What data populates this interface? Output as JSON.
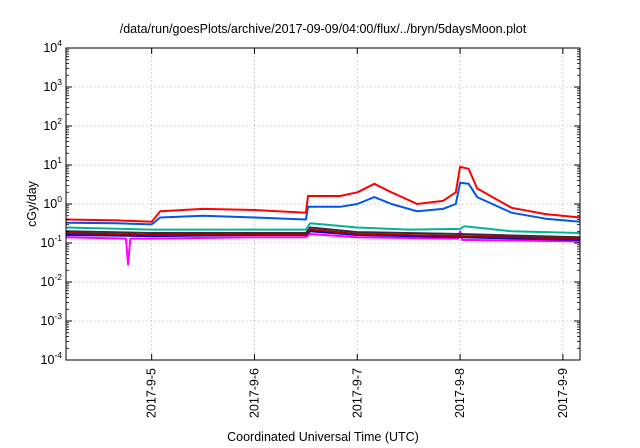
{
  "chart_data": {
    "type": "line",
    "title": "/data/run/goesPlots/archive/2017-09-09/04:00/flux/../bryn/5daysMoon.plot",
    "xlabel": "Coordinated Universal Time (UTC)",
    "ylabel": "cGy/day",
    "y_scale": "log",
    "ylim": [
      0.0001,
      10000
    ],
    "y_ticks": [
      {
        "value": 0.0001,
        "base": "10",
        "exp": "-4"
      },
      {
        "value": 0.001,
        "base": "10",
        "exp": "-3"
      },
      {
        "value": 0.01,
        "base": "10",
        "exp": "-2"
      },
      {
        "value": 0.1,
        "base": "10",
        "exp": "-1"
      },
      {
        "value": 1,
        "base": "10",
        "exp": "0"
      },
      {
        "value": 10,
        "base": "10",
        "exp": "1"
      },
      {
        "value": 100,
        "base": "10",
        "exp": "2"
      },
      {
        "value": 1000,
        "base": "10",
        "exp": "3"
      },
      {
        "value": 10000,
        "base": "10",
        "exp": "4"
      }
    ],
    "xlim": [
      "2017-09-04T04:00",
      "2017-09-09T04:00"
    ],
    "x_ticks": [
      "2017-9-5",
      "2017-9-6",
      "2017-9-7",
      "2017-9-8",
      "2017-9-9"
    ],
    "grid": true,
    "series": [
      {
        "color": "#ff0000",
        "x": [
          "2017-09-04T04:00",
          "2017-09-04T16:00",
          "2017-09-05T00:00",
          "2017-09-05T02:00",
          "2017-09-05T12:00",
          "2017-09-06T00:00",
          "2017-09-06T12:00",
          "2017-09-06T12:30",
          "2017-09-06T20:00",
          "2017-09-07T00:00",
          "2017-09-07T04:00",
          "2017-09-07T08:00",
          "2017-09-07T14:00",
          "2017-09-07T20:00",
          "2017-09-07T23:00",
          "2017-09-08T00:00",
          "2017-09-08T02:00",
          "2017-09-08T04:00",
          "2017-09-08T12:00",
          "2017-09-08T20:00",
          "2017-09-09T04:00"
        ],
        "y": [
          0.4,
          0.38,
          0.35,
          0.65,
          0.75,
          0.7,
          0.6,
          1.6,
          1.6,
          2.0,
          3.3,
          2.0,
          1.0,
          1.2,
          2.0,
          9.0,
          8.0,
          2.5,
          0.8,
          0.55,
          0.45
        ]
      },
      {
        "color": "#0055ee",
        "x": [
          "2017-09-04T04:00",
          "2017-09-04T16:00",
          "2017-09-05T00:00",
          "2017-09-05T02:00",
          "2017-09-05T12:00",
          "2017-09-06T00:00",
          "2017-09-06T12:00",
          "2017-09-06T12:30",
          "2017-09-06T20:00",
          "2017-09-07T00:00",
          "2017-09-07T04:00",
          "2017-09-07T08:00",
          "2017-09-07T14:00",
          "2017-09-07T20:00",
          "2017-09-07T23:00",
          "2017-09-08T00:00",
          "2017-09-08T02:00",
          "2017-09-08T04:00",
          "2017-09-08T12:00",
          "2017-09-08T20:00",
          "2017-09-09T04:00"
        ],
        "y": [
          0.33,
          0.32,
          0.3,
          0.45,
          0.5,
          0.45,
          0.4,
          0.85,
          0.85,
          1.0,
          1.5,
          1.0,
          0.65,
          0.75,
          1.0,
          3.5,
          3.3,
          1.5,
          0.6,
          0.42,
          0.35
        ]
      },
      {
        "color": "#00b494",
        "x": [
          "2017-09-04T04:00",
          "2017-09-05T00:00",
          "2017-09-06T00:00",
          "2017-09-06T12:00",
          "2017-09-06T13:00",
          "2017-09-07T00:00",
          "2017-09-07T12:00",
          "2017-09-08T00:00",
          "2017-09-08T01:00",
          "2017-09-08T12:00",
          "2017-09-09T04:00"
        ],
        "y": [
          0.25,
          0.22,
          0.22,
          0.22,
          0.32,
          0.25,
          0.22,
          0.23,
          0.27,
          0.2,
          0.18
        ]
      },
      {
        "color": "#3a2a3a",
        "x": [
          "2017-09-04T04:00",
          "2017-09-05T00:00",
          "2017-09-06T00:00",
          "2017-09-06T12:00",
          "2017-09-06T13:00",
          "2017-09-07T00:00",
          "2017-09-08T00:00",
          "2017-09-09T04:00"
        ],
        "y": [
          0.2,
          0.18,
          0.18,
          0.18,
          0.25,
          0.19,
          0.17,
          0.14
        ]
      },
      {
        "color": "#aa0000",
        "x": [
          "2017-09-04T04:00",
          "2017-09-05T00:00",
          "2017-09-06T00:00",
          "2017-09-06T12:00",
          "2017-09-06T13:00",
          "2017-09-07T00:00",
          "2017-09-08T00:00",
          "2017-09-09T04:00"
        ],
        "y": [
          0.18,
          0.16,
          0.17,
          0.17,
          0.22,
          0.17,
          0.15,
          0.13
        ]
      },
      {
        "color": "#0000cc",
        "x": [
          "2017-09-04T04:00",
          "2017-09-05T00:00",
          "2017-09-06T00:00",
          "2017-09-06T12:00",
          "2017-09-06T13:00",
          "2017-09-07T00:00",
          "2017-09-08T00:00",
          "2017-09-09T04:00"
        ],
        "y": [
          0.16,
          0.15,
          0.16,
          0.16,
          0.2,
          0.16,
          0.14,
          0.12
        ]
      },
      {
        "color": "#ff00ff",
        "x": [
          "2017-09-04T04:00",
          "2017-09-04T18:00",
          "2017-09-04T18:30",
          "2017-09-04T19:00",
          "2017-09-05T00:00",
          "2017-09-06T00:00",
          "2017-09-06T12:00",
          "2017-09-06T13:00",
          "2017-09-07T00:00",
          "2017-09-07T23:30",
          "2017-09-08T00:00",
          "2017-09-08T00:30",
          "2017-09-09T04:00"
        ],
        "y": [
          0.14,
          0.13,
          0.028,
          0.13,
          0.13,
          0.14,
          0.14,
          0.17,
          0.14,
          0.13,
          0.2,
          0.12,
          0.11
        ]
      }
    ]
  }
}
